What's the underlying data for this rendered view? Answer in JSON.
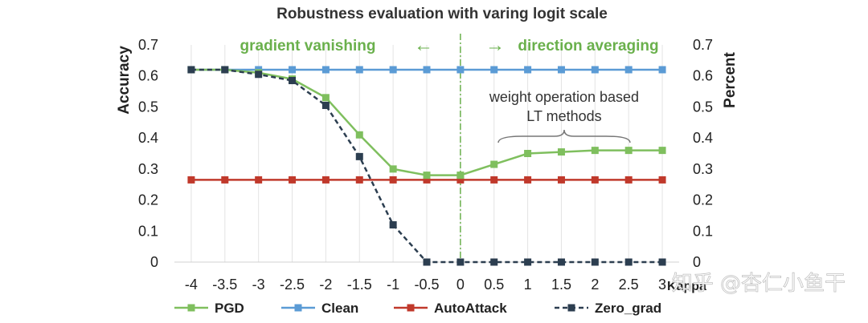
{
  "chart_data": {
    "type": "line",
    "title": "Robustness evaluation with varing logit  scale",
    "xlabel": "Kappa",
    "ylabel": "Accuracy",
    "ylabel_right": "Percent",
    "x": [
      -4,
      -3.5,
      -3,
      -2.5,
      -2,
      -1.5,
      -1,
      -0.5,
      0,
      0.5,
      1,
      1.5,
      2,
      2.5,
      3
    ],
    "x_tick_labels": [
      "-4",
      "-3.5",
      "-3",
      "-2.5",
      "-2",
      "-1.5",
      "-1",
      "-0.5",
      "0",
      "0.5",
      "1",
      "1.5",
      "2",
      "2.5",
      "3"
    ],
    "ylim": [
      0,
      0.7
    ],
    "y_tick_labels": [
      "0",
      "0.1",
      "0.2",
      "0.3",
      "0.4",
      "0.5",
      "0.6",
      "0.7"
    ],
    "series": [
      {
        "name": "PGD",
        "color": "#7fbf5e",
        "dashed": false,
        "values": [
          0.62,
          0.62,
          0.61,
          0.59,
          0.53,
          0.41,
          0.3,
          0.28,
          0.28,
          0.315,
          0.35,
          0.355,
          0.36,
          0.36,
          0.36
        ]
      },
      {
        "name": "Clean",
        "color": "#5b9bd5",
        "dashed": false,
        "values": [
          0.62,
          0.62,
          0.62,
          0.62,
          0.62,
          0.62,
          0.62,
          0.62,
          0.62,
          0.62,
          0.62,
          0.62,
          0.62,
          0.62,
          0.62
        ]
      },
      {
        "name": "AutoAttack",
        "color": "#c0392b",
        "dashed": false,
        "values": [
          0.265,
          0.265,
          0.265,
          0.265,
          0.265,
          0.265,
          0.265,
          0.265,
          0.265,
          0.265,
          0.265,
          0.265,
          0.265,
          0.265,
          0.265
        ]
      },
      {
        "name": "Zero_grad",
        "color": "#2c3e50",
        "dashed": true,
        "values": [
          0.62,
          0.62,
          0.605,
          0.585,
          0.505,
          0.34,
          0.12,
          0.0,
          0.0,
          0.0,
          0.0,
          0.0,
          0.0,
          0.0,
          0.0
        ]
      }
    ],
    "annotations": {
      "left_region": "gradient vanishing",
      "right_region": "direction averaging",
      "left_arrow": "←",
      "right_arrow": "→",
      "note_line1": "weight operation based",
      "note_line2": "LT methods",
      "divider_x": 0,
      "region_color": "#6ab04c"
    },
    "grid": true,
    "legend": "bottom"
  },
  "watermark": "知乎 @杏仁小鱼干"
}
